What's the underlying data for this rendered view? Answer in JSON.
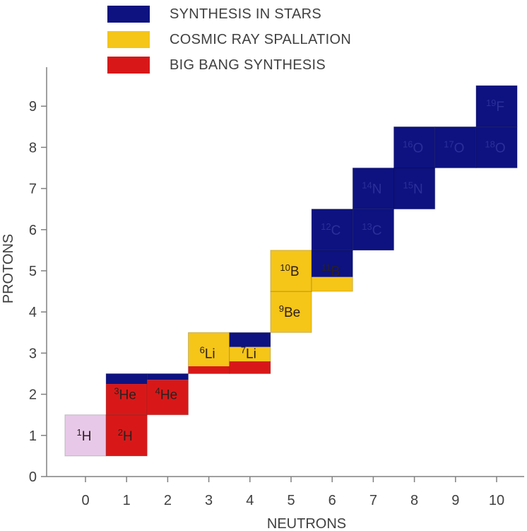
{
  "legend": [
    {
      "label": "SYNTHESIS IN STARS",
      "color": "#0d1280"
    },
    {
      "label": "COSMIC RAY SPALLATION",
      "color": "#f5c518"
    },
    {
      "label": "BIG BANG SYNTHESIS",
      "color": "#d81818"
    }
  ],
  "chart_data": {
    "type": "heatmap",
    "xlabel": "NEUTRONS",
    "ylabel": "PROTONS",
    "xlim": [
      0,
      10
    ],
    "ylim": [
      0,
      9
    ],
    "x_ticks": [
      "0",
      "1",
      "2",
      "3",
      "4",
      "5",
      "6",
      "7",
      "8",
      "9",
      "10"
    ],
    "y_ticks": [
      "0",
      "1",
      "2",
      "3",
      "4",
      "5",
      "6",
      "7",
      "8",
      "9"
    ],
    "colors": {
      "stars": "#0d1280",
      "spallation": "#f5c518",
      "bigbang": "#d81818",
      "hydrogen": "#e8c8e8"
    },
    "cells": [
      {
        "n": 0,
        "p": 1,
        "mass": "1",
        "symbol": "H",
        "bands": [
          [
            "hydrogen",
            1.0
          ]
        ]
      },
      {
        "n": 1,
        "p": 1,
        "mass": "2",
        "symbol": "H",
        "bands": [
          [
            "bigbang",
            1.0
          ]
        ]
      },
      {
        "n": 1,
        "p": 2,
        "mass": "3",
        "symbol": "He",
        "bands": [
          [
            "bigbang",
            0.75
          ],
          [
            "stars",
            0.25
          ]
        ]
      },
      {
        "n": 2,
        "p": 2,
        "mass": "4",
        "symbol": "He",
        "bands": [
          [
            "bigbang",
            0.85
          ],
          [
            "stars",
            0.15
          ]
        ]
      },
      {
        "n": 3,
        "p": 3,
        "mass": "6",
        "symbol": "Li",
        "bands": [
          [
            "bigbang",
            0.18
          ],
          [
            "spallation",
            0.82
          ]
        ]
      },
      {
        "n": 4,
        "p": 3,
        "mass": "7",
        "symbol": "Li",
        "bands": [
          [
            "bigbang",
            0.3
          ],
          [
            "spallation",
            0.35
          ],
          [
            "stars",
            0.35
          ]
        ]
      },
      {
        "n": 5,
        "p": 4,
        "mass": "9",
        "symbol": "Be",
        "bands": [
          [
            "spallation",
            1.0
          ]
        ]
      },
      {
        "n": 5,
        "p": 5,
        "mass": "10",
        "symbol": "B",
        "bands": [
          [
            "spallation",
            1.0
          ]
        ]
      },
      {
        "n": 6,
        "p": 5,
        "mass": "11",
        "symbol": "B",
        "bands": [
          [
            "spallation",
            0.35
          ],
          [
            "stars",
            0.65
          ]
        ]
      },
      {
        "n": 6,
        "p": 6,
        "mass": "12",
        "symbol": "C",
        "bands": [
          [
            "stars",
            1.0
          ]
        ]
      },
      {
        "n": 7,
        "p": 6,
        "mass": "13",
        "symbol": "C",
        "bands": [
          [
            "stars",
            1.0
          ]
        ]
      },
      {
        "n": 7,
        "p": 7,
        "mass": "14",
        "symbol": "N",
        "bands": [
          [
            "stars",
            1.0
          ]
        ]
      },
      {
        "n": 8,
        "p": 7,
        "mass": "15",
        "symbol": "N",
        "bands": [
          [
            "stars",
            1.0
          ]
        ]
      },
      {
        "n": 8,
        "p": 8,
        "mass": "16",
        "symbol": "O",
        "bands": [
          [
            "stars",
            1.0
          ]
        ]
      },
      {
        "n": 9,
        "p": 8,
        "mass": "17",
        "symbol": "O",
        "bands": [
          [
            "stars",
            1.0
          ]
        ]
      },
      {
        "n": 10,
        "p": 8,
        "mass": "18",
        "symbol": "O",
        "bands": [
          [
            "stars",
            1.0
          ]
        ]
      },
      {
        "n": 10,
        "p": 9,
        "mass": "19",
        "symbol": "F",
        "bands": [
          [
            "stars",
            1.0
          ]
        ]
      }
    ]
  }
}
